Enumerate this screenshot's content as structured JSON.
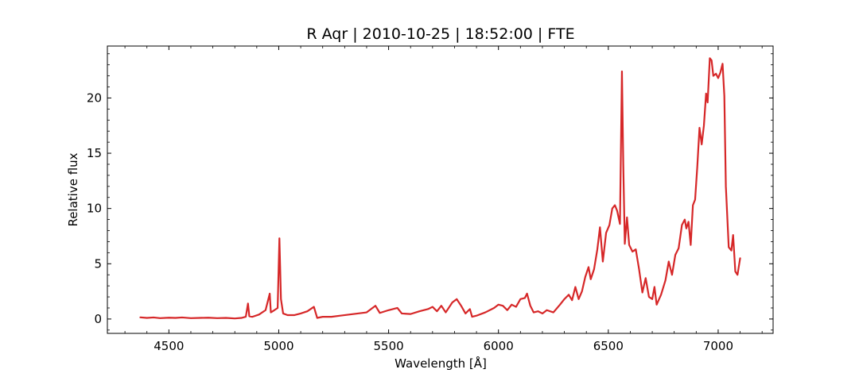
{
  "chart_data": {
    "type": "line",
    "title": "R Aqr | 2010-10-25 | 18:52:00 | FTE",
    "xlabel": "Wavelength [Å]",
    "ylabel": "Relative flux",
    "xlim": [
      4220,
      7250
    ],
    "ylim": [
      -1.3,
      24.7
    ],
    "xticks": [
      4500,
      5000,
      5500,
      6000,
      6500,
      7000
    ],
    "yticks": [
      0,
      5,
      10,
      15,
      20
    ],
    "grid": false,
    "line_color": "#d62728",
    "series": [
      {
        "values": [
          [
            4370,
            0.15
          ],
          [
            4400,
            0.1
          ],
          [
            4430,
            0.14
          ],
          [
            4460,
            0.08
          ],
          [
            4500,
            0.12
          ],
          [
            4530,
            0.1
          ],
          [
            4560,
            0.14
          ],
          [
            4600,
            0.08
          ],
          [
            4640,
            0.1
          ],
          [
            4680,
            0.12
          ],
          [
            4720,
            0.08
          ],
          [
            4760,
            0.1
          ],
          [
            4800,
            0.05
          ],
          [
            4830,
            0.1
          ],
          [
            4850,
            0.2
          ],
          [
            4860,
            1.4
          ],
          [
            4866,
            0.25
          ],
          [
            4880,
            0.2
          ],
          [
            4910,
            0.4
          ],
          [
            4940,
            0.8
          ],
          [
            4959,
            2.3
          ],
          [
            4964,
            0.6
          ],
          [
            4980,
            0.8
          ],
          [
            4995,
            1.0
          ],
          [
            5003,
            7.3
          ],
          [
            5010,
            1.8
          ],
          [
            5020,
            0.5
          ],
          [
            5040,
            0.35
          ],
          [
            5070,
            0.35
          ],
          [
            5100,
            0.5
          ],
          [
            5130,
            0.7
          ],
          [
            5160,
            1.1
          ],
          [
            5175,
            0.1
          ],
          [
            5200,
            0.2
          ],
          [
            5240,
            0.2
          ],
          [
            5280,
            0.3
          ],
          [
            5320,
            0.4
          ],
          [
            5360,
            0.5
          ],
          [
            5400,
            0.6
          ],
          [
            5420,
            0.9
          ],
          [
            5440,
            1.2
          ],
          [
            5460,
            0.55
          ],
          [
            5500,
            0.8
          ],
          [
            5540,
            1.0
          ],
          [
            5560,
            0.5
          ],
          [
            5600,
            0.45
          ],
          [
            5640,
            0.7
          ],
          [
            5680,
            0.9
          ],
          [
            5700,
            1.1
          ],
          [
            5720,
            0.7
          ],
          [
            5740,
            1.2
          ],
          [
            5760,
            0.6
          ],
          [
            5790,
            1.5
          ],
          [
            5810,
            1.8
          ],
          [
            5830,
            1.2
          ],
          [
            5850,
            0.5
          ],
          [
            5870,
            0.9
          ],
          [
            5880,
            0.2
          ],
          [
            5900,
            0.3
          ],
          [
            5940,
            0.6
          ],
          [
            5980,
            1.0
          ],
          [
            6000,
            1.3
          ],
          [
            6020,
            1.2
          ],
          [
            6040,
            0.8
          ],
          [
            6060,
            1.3
          ],
          [
            6080,
            1.1
          ],
          [
            6100,
            1.8
          ],
          [
            6120,
            1.9
          ],
          [
            6130,
            2.3
          ],
          [
            6145,
            1.2
          ],
          [
            6160,
            0.6
          ],
          [
            6180,
            0.7
          ],
          [
            6200,
            0.5
          ],
          [
            6220,
            0.8
          ],
          [
            6250,
            0.6
          ],
          [
            6280,
            1.3
          ],
          [
            6300,
            1.8
          ],
          [
            6320,
            2.2
          ],
          [
            6335,
            1.7
          ],
          [
            6350,
            2.9
          ],
          [
            6365,
            1.8
          ],
          [
            6380,
            2.5
          ],
          [
            6395,
            3.8
          ],
          [
            6410,
            4.7
          ],
          [
            6420,
            3.6
          ],
          [
            6435,
            4.5
          ],
          [
            6450,
            6.3
          ],
          [
            6462,
            8.3
          ],
          [
            6475,
            5.2
          ],
          [
            6490,
            7.8
          ],
          [
            6505,
            8.5
          ],
          [
            6518,
            10.0
          ],
          [
            6530,
            10.3
          ],
          [
            6540,
            9.8
          ],
          [
            6553,
            8.6
          ],
          [
            6562,
            22.4
          ],
          [
            6568,
            14.0
          ],
          [
            6575,
            6.8
          ],
          [
            6585,
            9.2
          ],
          [
            6595,
            6.7
          ],
          [
            6610,
            6.1
          ],
          [
            6625,
            6.3
          ],
          [
            6640,
            4.5
          ],
          [
            6655,
            2.4
          ],
          [
            6670,
            3.7
          ],
          [
            6685,
            2.0
          ],
          [
            6700,
            1.8
          ],
          [
            6710,
            2.9
          ],
          [
            6720,
            1.3
          ],
          [
            6740,
            2.2
          ],
          [
            6760,
            3.5
          ],
          [
            6775,
            5.2
          ],
          [
            6790,
            4.0
          ],
          [
            6805,
            5.8
          ],
          [
            6820,
            6.4
          ],
          [
            6835,
            8.5
          ],
          [
            6848,
            9.0
          ],
          [
            6855,
            8.2
          ],
          [
            6865,
            8.8
          ],
          [
            6875,
            6.7
          ],
          [
            6885,
            10.3
          ],
          [
            6895,
            10.8
          ],
          [
            6905,
            13.8
          ],
          [
            6915,
            17.3
          ],
          [
            6925,
            15.8
          ],
          [
            6935,
            17.5
          ],
          [
            6945,
            20.4
          ],
          [
            6952,
            19.6
          ],
          [
            6962,
            23.6
          ],
          [
            6970,
            23.4
          ],
          [
            6978,
            22.0
          ],
          [
            6990,
            22.2
          ],
          [
            7000,
            21.8
          ],
          [
            7010,
            22.3
          ],
          [
            7020,
            23.1
          ],
          [
            7028,
            20.2
          ],
          [
            7035,
            12.0
          ],
          [
            7048,
            6.5
          ],
          [
            7060,
            6.2
          ],
          [
            7068,
            7.6
          ],
          [
            7078,
            4.3
          ],
          [
            7088,
            4.0
          ],
          [
            7100,
            5.5
          ]
        ]
      }
    ]
  }
}
